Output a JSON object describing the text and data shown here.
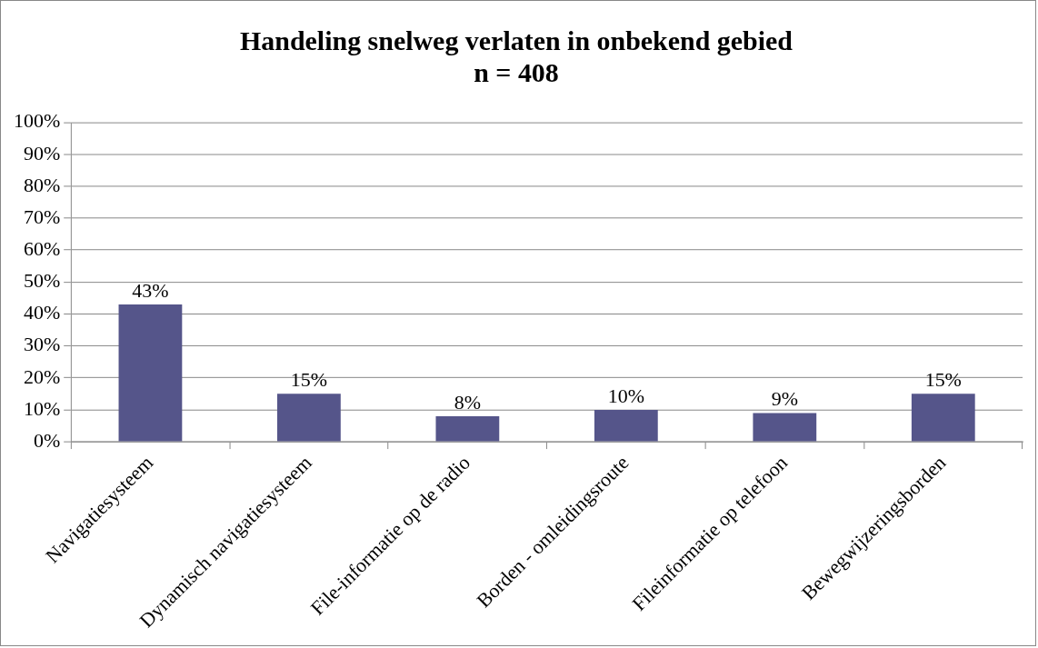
{
  "chart_data": {
    "type": "bar",
    "title": "Handeling snelweg verlaten in onbekend gebied",
    "subtitle": "n = 408",
    "categories": [
      "Navigatiesysteem",
      "Dynamisch navigatiesysteem",
      "File-informatie op de radio",
      "Borden - omleidingsroute",
      "Fileinformatie op telefoon",
      "Bewegwijzeringsborden"
    ],
    "values": [
      43,
      15,
      8,
      10,
      9,
      15
    ],
    "value_labels": [
      "43%",
      "15%",
      "8%",
      "10%",
      "9%",
      "15%"
    ],
    "color": "#55558a",
    "legend": false,
    "grid": "y",
    "ylim": [
      0,
      100
    ],
    "yticks": [
      {
        "value": 0,
        "label": "0%"
      },
      {
        "value": 10,
        "label": "10%"
      },
      {
        "value": 20,
        "label": "20%"
      },
      {
        "value": 30,
        "label": "30%"
      },
      {
        "value": 40,
        "label": "40%"
      },
      {
        "value": 50,
        "label": "50%"
      },
      {
        "value": 60,
        "label": "60%"
      },
      {
        "value": 70,
        "label": "70%"
      },
      {
        "value": 80,
        "label": "80%"
      },
      {
        "value": 90,
        "label": "90%"
      },
      {
        "value": 100,
        "label": "100%"
      }
    ]
  }
}
